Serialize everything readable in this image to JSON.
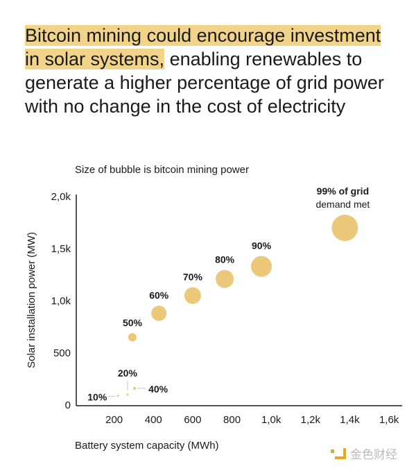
{
  "headline": {
    "highlight": "Bitcoin mining could encourage investment in solar systems,",
    "rest": " enabling renewables to generate a higher percentage of grid power with no change in the cost of electricity"
  },
  "watermark": "金色财经",
  "colors": {
    "bubble": "#ecc87a",
    "highlight": "#f1d48a",
    "leader": "#c8c8c8"
  },
  "chart_data": {
    "type": "scatter",
    "subtitle": "Size of bubble is bitcoin mining power",
    "xlabel": "Battery system capacity (MWh)",
    "ylabel": "Solar installation power (MW)",
    "xlim": [
      0,
      1600
    ],
    "ylim": [
      0,
      2000
    ],
    "xticks": [
      {
        "v": 200,
        "label": "200"
      },
      {
        "v": 400,
        "label": "400"
      },
      {
        "v": 600,
        "label": "600"
      },
      {
        "v": 800,
        "label": "800"
      },
      {
        "v": 1000,
        "label": "1,0k"
      },
      {
        "v": 1200,
        "label": "1,2k"
      },
      {
        "v": 1400,
        "label": "1,4k"
      },
      {
        "v": 1600,
        "label": "1,6k"
      }
    ],
    "yticks": [
      {
        "v": 0,
        "label": "0"
      },
      {
        "v": 500,
        "label": "500"
      },
      {
        "v": 1000,
        "label": "1,0k"
      },
      {
        "v": 1500,
        "label": "1,5k"
      },
      {
        "v": 2000,
        "label": "2,0k"
      }
    ],
    "grid": false,
    "points": [
      {
        "label": "10%",
        "x": 220,
        "y": 90,
        "size": 1.5
      },
      {
        "label": "20%",
        "x": 268,
        "y": 100,
        "size": 1.5
      },
      {
        "label": "40%",
        "x": 304,
        "y": 160,
        "size": 2
      },
      {
        "label": "50%",
        "x": 293,
        "y": 650,
        "size": 6
      },
      {
        "label": "60%",
        "x": 428,
        "y": 880,
        "size": 11
      },
      {
        "label": "70%",
        "x": 600,
        "y": 1050,
        "size": 12
      },
      {
        "label": "80%",
        "x": 763,
        "y": 1210,
        "size": 13
      },
      {
        "label": "90%",
        "x": 950,
        "y": 1330,
        "size": 15
      },
      {
        "label": "99%",
        "x": 1375,
        "y": 1700,
        "size": 19,
        "suffix": " of grid",
        "suffix2": "demand met"
      }
    ]
  }
}
